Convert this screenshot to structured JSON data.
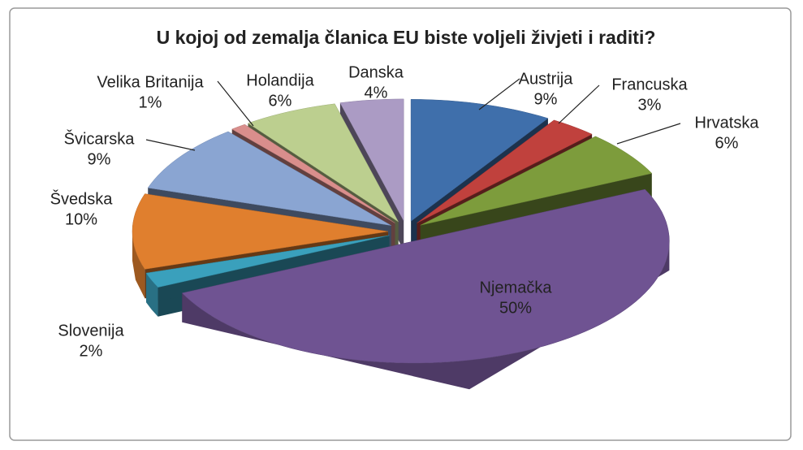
{
  "chart_data": {
    "type": "pie3d",
    "title": "U kojoj od zemalja članica EU biste voljeli živjeti i raditi?",
    "categories": [
      "Austrija",
      "Francuska",
      "Hrvatska",
      "Njemačka",
      "Slovenija",
      "Švedska",
      "Švicarska",
      "Velika Britanija",
      "Holandija",
      "Danska"
    ],
    "values": [
      9,
      3,
      6,
      50,
      2,
      10,
      9,
      1,
      6,
      4
    ],
    "value_labels": [
      "9%",
      "3%",
      "6%",
      "50%",
      "2%",
      "10%",
      "9%",
      "1%",
      "6%",
      "4%"
    ],
    "colors": [
      "#3f6fab",
      "#c0413d",
      "#7d9c3c",
      "#6f5392",
      "#3aa0bc",
      "#e07f2e",
      "#8aa5d2",
      "#d98e8c",
      "#bccf8f",
      "#ab9bc4"
    ]
  }
}
